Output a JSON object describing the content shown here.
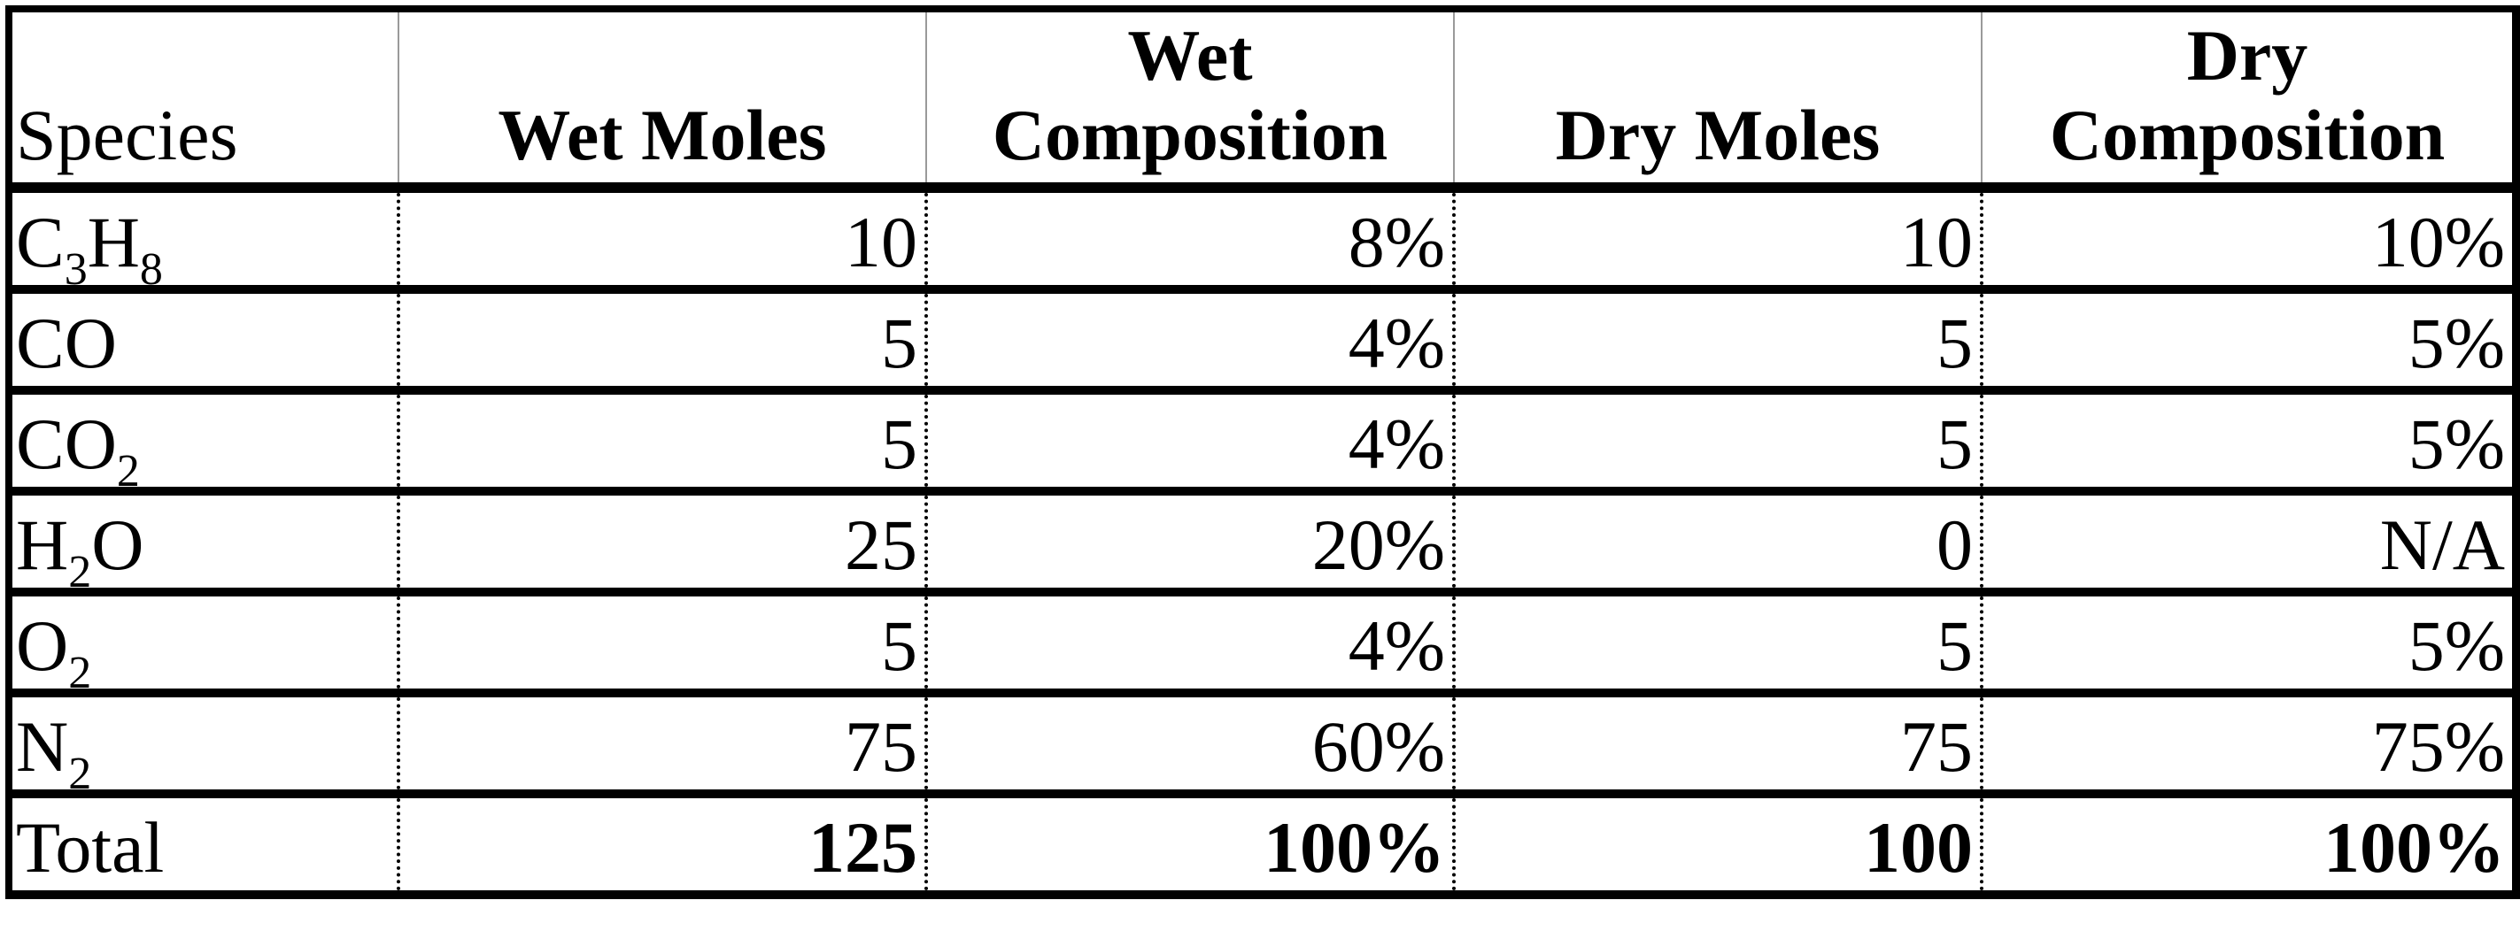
{
  "table": {
    "headers": [
      {
        "lines": [
          "Species"
        ]
      },
      {
        "lines": [
          "Wet Moles"
        ]
      },
      {
        "lines": [
          "Wet",
          "Composition"
        ]
      },
      {
        "lines": [
          "Dry Moles"
        ]
      },
      {
        "lines": [
          "Dry",
          "Composition"
        ]
      }
    ],
    "rows": [
      {
        "species": {
          "base": "C",
          "sub1": "3",
          "mid": "H",
          "sub2": "8",
          "tail": ""
        },
        "wet_moles": "10",
        "wet_comp": "8%",
        "dry_moles": "10",
        "dry_comp": "10%"
      },
      {
        "species": {
          "base": "CO",
          "sub1": "",
          "mid": "",
          "sub2": "",
          "tail": ""
        },
        "wet_moles": "5",
        "wet_comp": "4%",
        "dry_moles": "5",
        "dry_comp": "5%"
      },
      {
        "species": {
          "base": "CO",
          "sub1": "2",
          "mid": "",
          "sub2": "",
          "tail": ""
        },
        "wet_moles": "5",
        "wet_comp": "4%",
        "dry_moles": "5",
        "dry_comp": "5%"
      },
      {
        "species": {
          "base": "H",
          "sub1": "2",
          "mid": "O",
          "sub2": "",
          "tail": ""
        },
        "wet_moles": "25",
        "wet_comp": "20%",
        "dry_moles": "0",
        "dry_comp": "N/A"
      },
      {
        "species": {
          "base": "O",
          "sub1": "2",
          "mid": "",
          "sub2": "",
          "tail": ""
        },
        "wet_moles": "5",
        "wet_comp": "4%",
        "dry_moles": "5",
        "dry_comp": "5%"
      },
      {
        "species": {
          "base": "N",
          "sub1": "2",
          "mid": "",
          "sub2": "",
          "tail": ""
        },
        "wet_moles": "75",
        "wet_comp": "60%",
        "dry_moles": "75",
        "dry_comp": "75%"
      }
    ],
    "total": {
      "label": "Total",
      "wet_moles": "125",
      "wet_comp": "100%",
      "dry_moles": "100",
      "dry_comp": "100%"
    }
  }
}
